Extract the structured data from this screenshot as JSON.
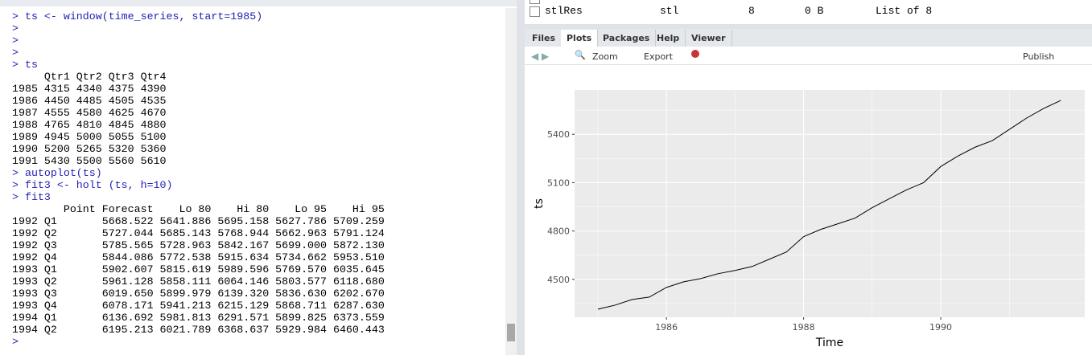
{
  "console": {
    "lines": [
      "> ts <- window(time_series, start=1985)",
      ">",
      ">",
      ">",
      "> ts",
      "     Qtr1 Qtr2 Qtr3 Qtr4",
      "1985 4315 4340 4375 4390",
      "1986 4450 4485 4505 4535",
      "1987 4555 4580 4625 4670",
      "1988 4765 4810 4845 4880",
      "1989 4945 5000 5055 5100",
      "1990 5200 5265 5320 5360",
      "1991 5430 5500 5560 5610",
      "> autoplot(ts)",
      "> fit3 <- holt (ts, h=10)",
      "> fit3",
      "        Point Forecast    Lo 80    Hi 80    Lo 95    Hi 95",
      "1992 Q1       5668.522 5641.886 5695.158 5627.786 5709.259",
      "1992 Q2       5727.044 5685.143 5768.944 5662.963 5791.124",
      "1992 Q3       5785.565 5728.963 5842.167 5699.000 5872.130",
      "1992 Q4       5844.086 5772.538 5915.634 5734.662 5953.510",
      "1993 Q1       5902.607 5815.619 5989.596 5769.570 6035.645",
      "1993 Q2       5961.128 5858.111 6064.146 5803.577 6118.680",
      "1993 Q3       6019.650 5899.979 6139.320 5836.630 6202.670",
      "1993 Q4       6078.171 5941.213 6215.129 5868.711 6287.630",
      "1994 Q1       6136.692 5981.813 6291.571 5899.825 6373.559",
      "1994 Q2       6195.213 6021.789 6368.637 5929.984 6460.443",
      ">"
    ]
  },
  "environment": {
    "name": "stlRes",
    "type": "stl",
    "length": "8",
    "size": "0 B",
    "value": "List of 8"
  },
  "tabs": [
    "Files",
    "Plots",
    "Packages",
    "Help",
    "Viewer"
  ],
  "toolbar": {
    "zoom": "Zoom",
    "export": "Export",
    "publish": "Publish"
  },
  "chart_data": {
    "type": "line",
    "xlabel": "Time",
    "ylabel": "ts",
    "color": "#000000",
    "panel_color": "#ebebeb",
    "grid": true,
    "minor_grid": true,
    "x": [
      1985,
      1985.25,
      1985.5,
      1985.75,
      1986,
      1986.25,
      1986.5,
      1986.75,
      1987,
      1987.25,
      1987.5,
      1987.75,
      1988,
      1988.25,
      1988.5,
      1988.75,
      1989,
      1989.25,
      1989.5,
      1989.75,
      1990,
      1990.25,
      1990.5,
      1990.75,
      1991,
      1991.25,
      1991.5,
      1991.75
    ],
    "values": [
      4315,
      4340,
      4375,
      4390,
      4450,
      4485,
      4505,
      4535,
      4555,
      4580,
      4625,
      4670,
      4765,
      4810,
      4845,
      4880,
      4945,
      5000,
      5055,
      5100,
      5200,
      5265,
      5320,
      5360,
      5430,
      5500,
      5560,
      5610
    ],
    "xlim": [
      1984.66,
      1992.1
    ],
    "ylim": [
      4265,
      5675
    ],
    "xticks": [
      1986,
      1988,
      1990
    ],
    "yticks": [
      4500,
      4800,
      5100,
      5400
    ]
  }
}
